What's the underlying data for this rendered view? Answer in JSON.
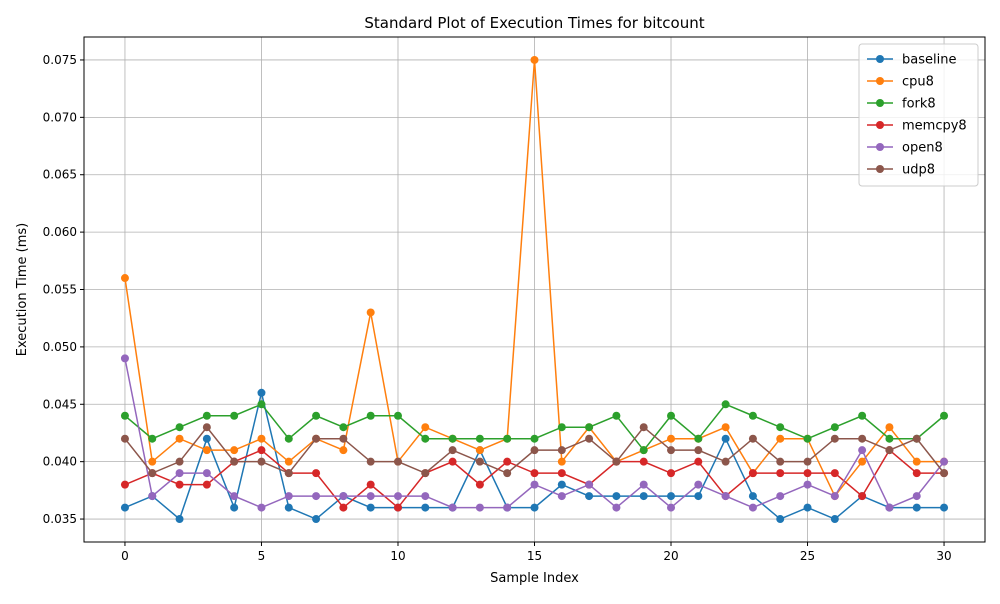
{
  "chart_data": {
    "type": "line",
    "title": "Standard Plot of Execution Times for bitcount",
    "xlabel": "Sample Index",
    "ylabel": "Execution Time (ms)",
    "xlim": [
      -1.5,
      31.5
    ],
    "ylim": [
      0.033,
      0.077
    ],
    "xticks": [
      0,
      5,
      10,
      15,
      20,
      25,
      30
    ],
    "yticks": [
      0.035,
      0.04,
      0.045,
      0.05,
      0.055,
      0.06,
      0.065,
      0.07,
      0.075
    ],
    "ytick_labels": [
      "0.035",
      "0.040",
      "0.045",
      "0.050",
      "0.055",
      "0.060",
      "0.065",
      "0.070",
      "0.075"
    ],
    "grid": true,
    "legend_position": "top-right",
    "x": [
      0,
      1,
      2,
      3,
      4,
      5,
      6,
      7,
      8,
      9,
      10,
      11,
      12,
      13,
      14,
      15,
      16,
      17,
      18,
      19,
      20,
      21,
      22,
      23,
      24,
      25,
      26,
      27,
      28,
      29,
      30
    ],
    "series": [
      {
        "name": "baseline",
        "color": "#1f77b4",
        "values": [
          0.036,
          0.037,
          0.035,
          0.042,
          0.036,
          0.046,
          0.036,
          0.035,
          0.037,
          0.036,
          0.036,
          0.036,
          0.036,
          0.041,
          0.036,
          0.036,
          0.038,
          0.037,
          0.037,
          0.037,
          0.037,
          0.037,
          0.042,
          0.037,
          0.035,
          0.036,
          0.035,
          0.037,
          0.036,
          0.036,
          0.036
        ]
      },
      {
        "name": "cpu8",
        "color": "#ff7f0e",
        "values": [
          0.056,
          0.04,
          0.042,
          0.041,
          0.041,
          0.042,
          0.04,
          0.042,
          0.041,
          0.053,
          0.04,
          0.043,
          0.042,
          0.041,
          0.042,
          0.075,
          0.04,
          0.043,
          0.04,
          0.041,
          0.042,
          0.042,
          0.043,
          0.039,
          0.042,
          0.042,
          0.037,
          0.04,
          0.043,
          0.04,
          0.04
        ]
      },
      {
        "name": "fork8",
        "color": "#2ca02c",
        "values": [
          0.044,
          0.042,
          0.043,
          0.044,
          0.044,
          0.045,
          0.042,
          0.044,
          0.043,
          0.044,
          0.044,
          0.042,
          0.042,
          0.042,
          0.042,
          0.042,
          0.043,
          0.043,
          0.044,
          0.041,
          0.044,
          0.042,
          0.045,
          0.044,
          0.043,
          0.042,
          0.043,
          0.044,
          0.042,
          0.042,
          0.044
        ]
      },
      {
        "name": "memcpy8",
        "color": "#d62728",
        "values": [
          0.038,
          0.039,
          0.038,
          0.038,
          0.04,
          0.041,
          0.039,
          0.039,
          0.036,
          0.038,
          0.036,
          0.039,
          0.04,
          0.038,
          0.04,
          0.039,
          0.039,
          0.038,
          0.04,
          0.04,
          0.039,
          0.04,
          0.037,
          0.039,
          0.039,
          0.039,
          0.039,
          0.037,
          0.041,
          0.039,
          0.039
        ]
      },
      {
        "name": "open8",
        "color": "#9467bd",
        "values": [
          0.049,
          0.037,
          0.039,
          0.039,
          0.037,
          0.036,
          0.037,
          0.037,
          0.037,
          0.037,
          0.037,
          0.037,
          0.036,
          0.036,
          0.036,
          0.038,
          0.037,
          0.038,
          0.036,
          0.038,
          0.036,
          0.038,
          0.037,
          0.036,
          0.037,
          0.038,
          0.037,
          0.041,
          0.036,
          0.037,
          0.04
        ]
      },
      {
        "name": "udp8",
        "color": "#8c564b",
        "values": [
          0.042,
          0.039,
          0.04,
          0.043,
          0.04,
          0.04,
          0.039,
          0.042,
          0.042,
          0.04,
          0.04,
          0.039,
          0.041,
          0.04,
          0.039,
          0.041,
          0.041,
          0.042,
          0.04,
          0.043,
          0.041,
          0.041,
          0.04,
          0.042,
          0.04,
          0.04,
          0.042,
          0.042,
          0.041,
          0.042,
          0.039
        ]
      }
    ]
  }
}
